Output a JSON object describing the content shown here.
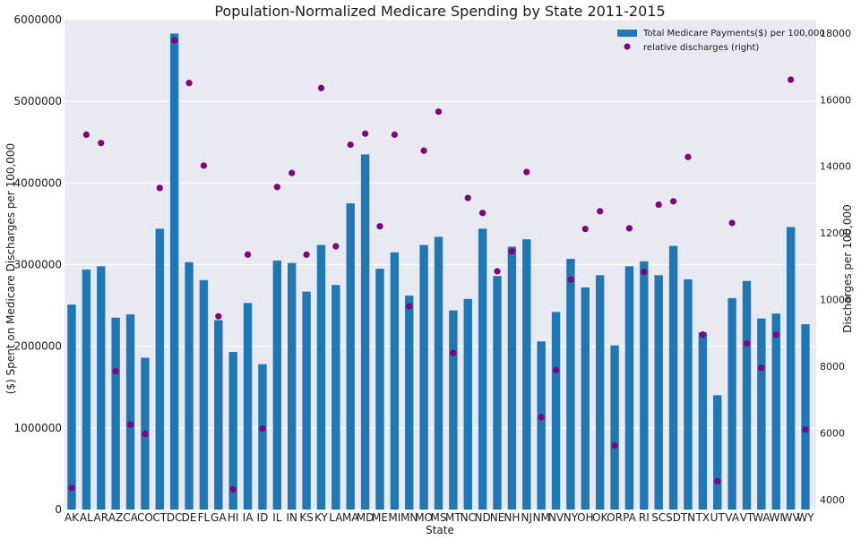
{
  "chart_data": {
    "type": "bar",
    "title": "Population-Normalized Medicare Spending by State 2011-2015",
    "xlabel": "State",
    "ylabel": "($) Spent on Medicare Discharges per 100,000",
    "y2label": "Discharges per 100,000",
    "ylim": [
      0,
      6000000
    ],
    "y2lim": [
      3700,
      18400
    ],
    "yticks": [
      0,
      1000000,
      2000000,
      3000000,
      4000000,
      5000000,
      6000000
    ],
    "y2ticks": [
      4000,
      6000,
      8000,
      10000,
      12000,
      14000,
      16000,
      18000
    ],
    "grid": true,
    "legend_position": "top-right",
    "categories": [
      "AK",
      "AL",
      "AR",
      "AZ",
      "CA",
      "CO",
      "CT",
      "DC",
      "DE",
      "FL",
      "GA",
      "HI",
      "IA",
      "ID",
      "IL",
      "IN",
      "KS",
      "KY",
      "LA",
      "MA",
      "MD",
      "ME",
      "MI",
      "MN",
      "MO",
      "MS",
      "MT",
      "NC",
      "ND",
      "NE",
      "NH",
      "NJ",
      "NM",
      "NV",
      "NY",
      "OH",
      "OK",
      "OR",
      "PA",
      "RI",
      "SC",
      "SD",
      "TN",
      "TX",
      "UT",
      "VA",
      "VT",
      "WA",
      "WI",
      "WV",
      "WY"
    ],
    "series": [
      {
        "name": "Total Medicare Payments($) per 100,000",
        "kind": "bar",
        "axis": "left",
        "color": "#1f77b4",
        "values": [
          2510000,
          2940000,
          2980000,
          2350000,
          2390000,
          1860000,
          3440000,
          5830000,
          3030000,
          2810000,
          2320000,
          1930000,
          2530000,
          1780000,
          3050000,
          3020000,
          2670000,
          3240000,
          2750000,
          3750000,
          4350000,
          2950000,
          3150000,
          2620000,
          3240000,
          3340000,
          2440000,
          2580000,
          3440000,
          2860000,
          3220000,
          3310000,
          2060000,
          2420000,
          3070000,
          2720000,
          2870000,
          2010000,
          2980000,
          3040000,
          2870000,
          3230000,
          2820000,
          2170000,
          1400000,
          2590000,
          2800000,
          2340000,
          2400000,
          3460000,
          2270000
        ]
      },
      {
        "name": "relative discharges (right)",
        "kind": "scatter",
        "axis": "right",
        "color": "#800080",
        "values": [
          4350,
          14950,
          14700,
          7850,
          6250,
          5970,
          13350,
          17780,
          16500,
          14020,
          9500,
          4300,
          11350,
          6130,
          13380,
          13800,
          11350,
          16350,
          11600,
          14650,
          14980,
          12200,
          14950,
          9800,
          14470,
          15640,
          8400,
          13050,
          12600,
          10850,
          11450,
          13830,
          6470,
          7880,
          10600,
          12120,
          12650,
          5620,
          12140,
          10830,
          12850,
          12950,
          14280,
          8950,
          4550,
          12300,
          8680,
          7950,
          8950,
          16600,
          6100
        ]
      }
    ]
  }
}
